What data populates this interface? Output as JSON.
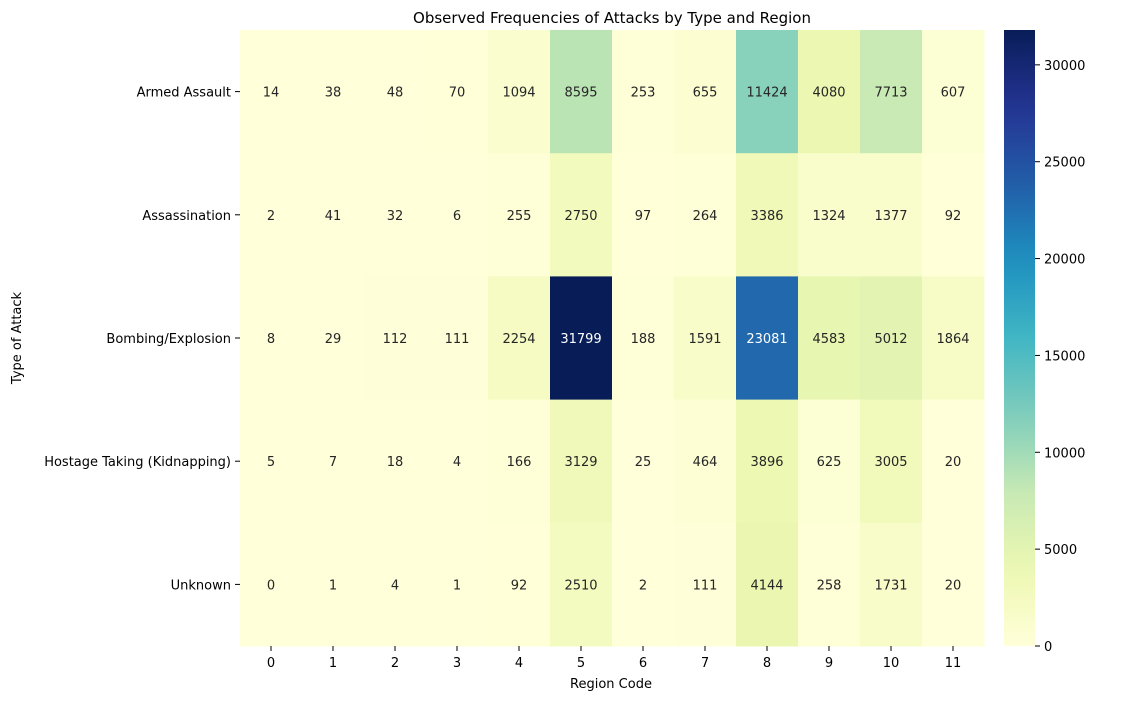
{
  "chart_data": {
    "type": "heatmap",
    "title": "Observed Frequencies of Attacks by Type and Region",
    "xlabel": "Region Code",
    "ylabel": "Type of Attack",
    "x_categories": [
      "0",
      "1",
      "2",
      "3",
      "4",
      "5",
      "6",
      "7",
      "8",
      "9",
      "10",
      "11"
    ],
    "y_categories": [
      "Armed Assault",
      "Assassination",
      "Bombing/Explosion",
      "Hostage Taking (Kidnapping)",
      "Unknown"
    ],
    "values": [
      [
        14,
        38,
        48,
        70,
        1094,
        8595,
        253,
        655,
        11424,
        4080,
        7713,
        607
      ],
      [
        2,
        41,
        32,
        6,
        255,
        2750,
        97,
        264,
        3386,
        1324,
        1377,
        92
      ],
      [
        8,
        29,
        112,
        111,
        2254,
        31799,
        188,
        1591,
        23081,
        4583,
        5012,
        1864
      ],
      [
        5,
        7,
        18,
        4,
        166,
        3129,
        25,
        464,
        3896,
        625,
        3005,
        20
      ],
      [
        0,
        1,
        4,
        1,
        92,
        2510,
        2,
        111,
        4144,
        258,
        1731,
        20
      ]
    ],
    "colormap": "YlGnBu",
    "vmin": 0,
    "vmax": 31799,
    "colorbar_ticks": [
      0,
      5000,
      10000,
      15000,
      20000,
      25000,
      30000
    ],
    "annotations": true,
    "grid": false
  }
}
